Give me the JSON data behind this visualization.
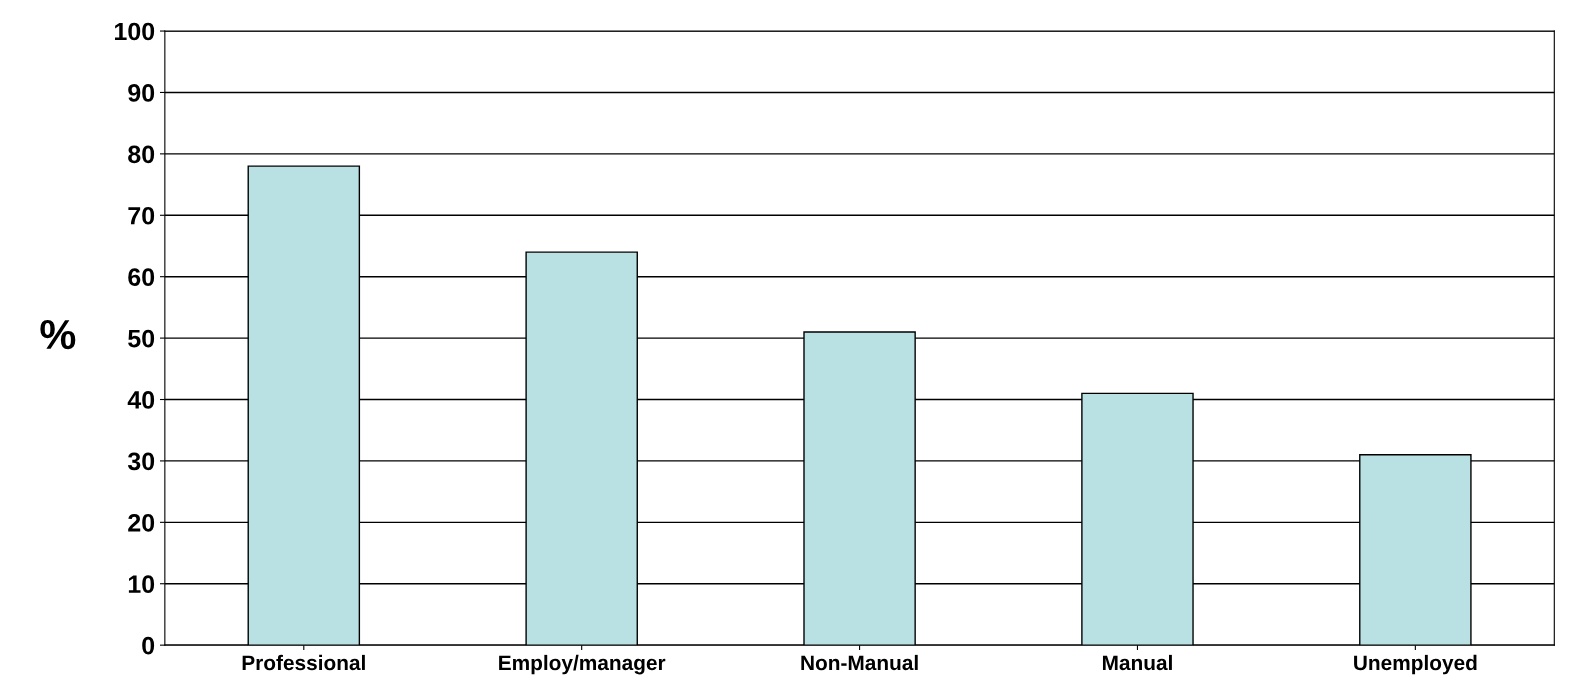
{
  "chart_data": {
    "type": "bar",
    "ylabel": "%",
    "categories": [
      "Professional",
      "Employ/manager",
      "Non-Manual",
      "Manual",
      "Unemployed"
    ],
    "values": [
      78,
      64,
      51,
      41,
      31
    ],
    "color": "#b9e0e3",
    "ylim": [
      0,
      100
    ],
    "yticks": [
      0,
      10,
      20,
      30,
      40,
      50,
      60,
      70,
      80,
      90,
      100
    ],
    "grid": "y",
    "legend": false
  }
}
